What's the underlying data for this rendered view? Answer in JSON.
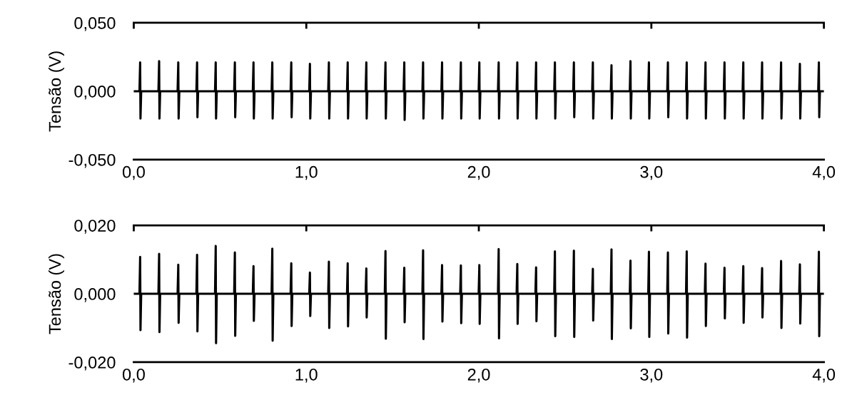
{
  "chart_data": [
    {
      "type": "line",
      "ylabel": "Tensão (V)",
      "x": [
        0.0,
        0.033,
        0.037,
        0.039,
        0.043,
        0.143,
        0.147,
        0.149,
        0.153,
        0.254,
        0.258,
        0.26,
        0.264,
        0.363,
        0.367,
        0.369,
        0.373,
        0.471,
        0.475,
        0.477,
        0.481,
        0.582,
        0.586,
        0.588,
        0.592,
        0.69,
        0.694,
        0.696,
        0.7,
        0.799,
        0.803,
        0.805,
        0.809,
        0.909,
        0.913,
        0.915,
        0.919,
        1.017,
        1.021,
        1.023,
        1.027,
        1.127,
        1.131,
        1.133,
        1.137,
        1.236,
        1.24,
        1.242,
        1.246,
        1.344,
        1.348,
        1.35,
        1.354,
        1.455,
        1.459,
        1.461,
        1.465,
        1.564,
        1.568,
        1.57,
        1.574,
        1.673,
        1.677,
        1.679,
        1.683,
        1.783,
        1.787,
        1.789,
        1.793,
        1.892,
        1.896,
        1.898,
        1.902,
        1.999,
        2.003,
        2.005,
        2.009,
        2.111,
        2.115,
        2.117,
        2.121,
        2.219,
        2.223,
        2.225,
        2.229,
        2.328,
        2.332,
        2.334,
        2.338,
        2.437,
        2.441,
        2.443,
        2.447,
        2.547,
        2.551,
        2.553,
        2.557,
        2.657,
        2.661,
        2.663,
        2.667,
        2.765,
        2.769,
        2.771,
        2.775,
        2.875,
        2.879,
        2.881,
        2.885,
        2.982,
        2.986,
        2.988,
        2.992,
        3.092,
        3.096,
        3.098,
        3.102,
        3.201,
        3.205,
        3.207,
        3.211,
        3.31,
        3.314,
        3.316,
        3.32,
        3.42,
        3.424,
        3.426,
        3.43,
        3.529,
        3.533,
        3.535,
        3.539,
        3.638,
        3.642,
        3.644,
        3.648,
        3.748,
        3.752,
        3.754,
        3.758,
        3.857,
        3.861,
        3.863,
        3.867,
        3.967,
        3.971,
        3.973,
        3.977,
        4.0
      ],
      "series": [
        {
          "color": "#000000",
          "values": [
            0,
            0,
            0.021,
            -0.02,
            0,
            0,
            0.022,
            -0.02,
            0,
            0,
            0.021,
            -0.02,
            0,
            0,
            0.021,
            -0.019,
            0,
            0,
            0.021,
            -0.02,
            0,
            0,
            0.021,
            -0.019,
            0,
            0,
            0.021,
            -0.02,
            0,
            0,
            0.021,
            -0.02,
            0,
            0,
            0.021,
            -0.019,
            0,
            0,
            0.02,
            -0.02,
            0,
            0,
            0.021,
            -0.02,
            0,
            0,
            0.021,
            -0.02,
            0,
            0,
            0.021,
            -0.02,
            0,
            0,
            0.021,
            -0.02,
            0,
            0,
            0.021,
            -0.021,
            0,
            0,
            0.021,
            -0.02,
            0,
            0,
            0.021,
            -0.02,
            0,
            0,
            0.021,
            -0.02,
            0,
            0,
            0.021,
            -0.02,
            0,
            0,
            0.021,
            -0.02,
            0,
            0,
            0.021,
            -0.02,
            0,
            0,
            0.021,
            -0.02,
            0,
            0,
            0.021,
            -0.02,
            0,
            0,
            0.021,
            -0.019,
            0,
            0,
            0.021,
            -0.02,
            0,
            0,
            0.019,
            -0.02,
            0,
            0,
            0.022,
            -0.02,
            0,
            0,
            0.021,
            -0.02,
            0,
            0,
            0.021,
            -0.019,
            0,
            0,
            0.021,
            -0.02,
            0,
            0,
            0.021,
            -0.02,
            0,
            0,
            0.021,
            -0.02,
            0,
            0,
            0.021,
            -0.02,
            0,
            0,
            0.021,
            -0.02,
            0,
            0,
            0.021,
            -0.02,
            0,
            0,
            0.02,
            -0.02,
            0,
            0,
            0.021,
            -0.019,
            0,
            0
          ]
        }
      ],
      "xlim": [
        0.0,
        4.0
      ],
      "ylim": [
        -0.05,
        0.05
      ],
      "xticks": [
        {
          "value": 0,
          "label": "0,0"
        },
        {
          "value": 1,
          "label": "1,0"
        },
        {
          "value": 2,
          "label": "2,0"
        },
        {
          "value": 3,
          "label": "3,0"
        },
        {
          "value": 4,
          "label": "4,0"
        }
      ],
      "yticks": [
        {
          "value": -0.05,
          "label": "-0,050"
        },
        {
          "value": 0,
          "label": "0,000"
        },
        {
          "value": 0.05,
          "label": "0,050"
        }
      ],
      "line_style": "solid",
      "marker": "none",
      "grid": false,
      "legend": false
    },
    {
      "type": "line",
      "ylabel": "Tensão (V)",
      "x": [
        0.0,
        0.033,
        0.037,
        0.039,
        0.043,
        0.143,
        0.147,
        0.149,
        0.153,
        0.254,
        0.258,
        0.26,
        0.264,
        0.363,
        0.367,
        0.369,
        0.373,
        0.471,
        0.475,
        0.477,
        0.481,
        0.582,
        0.586,
        0.588,
        0.592,
        0.69,
        0.694,
        0.696,
        0.7,
        0.799,
        0.803,
        0.805,
        0.809,
        0.909,
        0.913,
        0.915,
        0.919,
        1.017,
        1.021,
        1.023,
        1.027,
        1.127,
        1.131,
        1.133,
        1.137,
        1.236,
        1.24,
        1.242,
        1.246,
        1.344,
        1.348,
        1.35,
        1.354,
        1.455,
        1.459,
        1.461,
        1.465,
        1.564,
        1.568,
        1.57,
        1.574,
        1.673,
        1.677,
        1.679,
        1.683,
        1.783,
        1.787,
        1.789,
        1.793,
        1.892,
        1.896,
        1.898,
        1.902,
        1.999,
        2.003,
        2.005,
        2.009,
        2.111,
        2.115,
        2.117,
        2.121,
        2.219,
        2.223,
        2.225,
        2.229,
        2.328,
        2.332,
        2.334,
        2.338,
        2.437,
        2.441,
        2.443,
        2.447,
        2.547,
        2.551,
        2.553,
        2.557,
        2.657,
        2.661,
        2.663,
        2.667,
        2.765,
        2.769,
        2.771,
        2.775,
        2.875,
        2.879,
        2.881,
        2.885,
        2.982,
        2.986,
        2.988,
        2.992,
        3.092,
        3.096,
        3.098,
        3.102,
        3.201,
        3.205,
        3.207,
        3.211,
        3.31,
        3.314,
        3.316,
        3.32,
        3.42,
        3.424,
        3.426,
        3.43,
        3.529,
        3.533,
        3.535,
        3.539,
        3.638,
        3.642,
        3.644,
        3.648,
        3.748,
        3.752,
        3.754,
        3.758,
        3.857,
        3.861,
        3.863,
        3.867,
        3.967,
        3.971,
        3.973,
        3.977,
        4.0
      ],
      "series": [
        {
          "color": "#000000",
          "values": [
            0,
            0,
            0.0108,
            -0.0106,
            0,
            0,
            0.0117,
            -0.0112,
            0,
            0,
            0.0085,
            -0.0085,
            0,
            0,
            0.0114,
            -0.011,
            0,
            0,
            0.014,
            -0.0144,
            0,
            0,
            0.0121,
            -0.0123,
            0,
            0,
            0.0081,
            -0.0079,
            0,
            0,
            0.0132,
            -0.0137,
            0,
            0,
            0.0089,
            -0.0094,
            0,
            0,
            0.0062,
            -0.0065,
            0,
            0,
            0.0094,
            -0.01,
            0,
            0,
            0.0089,
            -0.0095,
            0,
            0,
            0.0074,
            -0.0069,
            0,
            0,
            0.0125,
            -0.0131,
            0,
            0,
            0.0076,
            -0.0083,
            0,
            0,
            0.0127,
            -0.0132,
            0,
            0,
            0.0084,
            -0.0081,
            0,
            0,
            0.0083,
            -0.0086,
            0,
            0,
            0.0084,
            -0.0088,
            0,
            0,
            0.0131,
            -0.013,
            0,
            0,
            0.0087,
            -0.0088,
            0,
            0,
            0.0077,
            -0.008,
            0,
            0,
            0.0124,
            -0.0124,
            0,
            0,
            0.0126,
            -0.0126,
            0,
            0,
            0.0073,
            -0.0078,
            0,
            0,
            0.013,
            -0.0132,
            0,
            0,
            0.0097,
            -0.0101,
            0,
            0,
            0.0123,
            -0.0126,
            0,
            0,
            0.0121,
            -0.0116,
            0,
            0,
            0.0124,
            -0.0128,
            0,
            0,
            0.0088,
            -0.0094,
            0,
            0,
            0.0076,
            -0.0072,
            0,
            0,
            0.0081,
            -0.0085,
            0,
            0,
            0.0075,
            -0.0069,
            0,
            0,
            0.0096,
            -0.01,
            0,
            0,
            0.0086,
            -0.0087,
            0,
            0,
            0.0123,
            -0.0124,
            0,
            0
          ]
        }
      ],
      "xlim": [
        0.0,
        4.0
      ],
      "ylim": [
        -0.02,
        0.02
      ],
      "xticks": [
        {
          "value": 0,
          "label": "0,0"
        },
        {
          "value": 1,
          "label": "1,0"
        },
        {
          "value": 2,
          "label": "2,0"
        },
        {
          "value": 3,
          "label": "3,0"
        },
        {
          "value": 4,
          "label": "4,0"
        }
      ],
      "yticks": [
        {
          "value": -0.02,
          "label": "-0,020"
        },
        {
          "value": 0,
          "label": "0,000"
        },
        {
          "value": 0.02,
          "label": "0,020"
        }
      ],
      "line_style": "solid",
      "marker": "none",
      "grid": false,
      "legend": false
    }
  ]
}
